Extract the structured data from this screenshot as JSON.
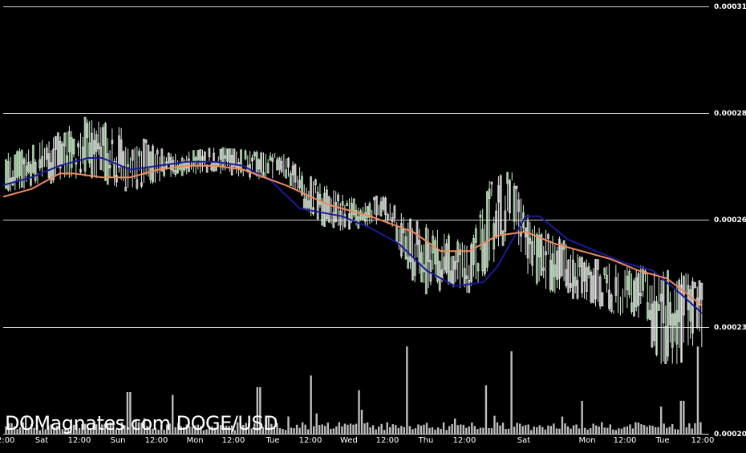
{
  "watermark": "DOMagnates.com DOGE/USD",
  "colors": {
    "background": "#000000",
    "grid": "#cfcfcf",
    "candle": "#e8e8e8",
    "candle_alt": "#c8f0c8",
    "ma_fast": "#1a1a9a",
    "ma_slow": "#f08a60",
    "volume": "#bdbdbd"
  },
  "chart_data": {
    "type": "line",
    "title": "",
    "series_style": "candlestick with volume bars and two moving averages",
    "y_axis": {
      "position": "right",
      "tick_labels": [
        "0.00031",
        "0.00028",
        "0.00026",
        "0.00023",
        "0.00020"
      ],
      "ylim": [
        0.0002,
        0.00031
      ],
      "grid": true
    },
    "x_axis": {
      "tick_labels": [
        "12:00",
        "Sat",
        "12:00",
        "Sun",
        "12:00",
        "Mon",
        "12:00",
        "Tue",
        "12:00",
        "Wed",
        "12:00",
        "Thu",
        "12:00",
        "Sat",
        "Mon",
        "12:00",
        "Tue",
        "12:00"
      ]
    },
    "price_envelope": {
      "x": [
        0,
        3,
        6,
        9,
        12,
        15,
        18,
        20,
        22,
        24,
        25.5,
        27,
        28.5,
        30,
        31.5,
        33,
        34.5,
        36,
        37.5,
        39,
        41,
        43,
        45,
        46.5,
        48,
        49
      ],
      "high": [
        0.000272,
        0.000276,
        0.000282,
        0.000278,
        0.000272,
        0.000274,
        0.000273,
        0.000272,
        0.000266,
        0.000262,
        0.00026,
        0.000262,
        0.000256,
        0.000254,
        0.000252,
        0.000248,
        0.000266,
        0.000268,
        0.000254,
        0.000252,
        0.000246,
        0.000244,
        0.000244,
        0.000242,
        0.000243,
        0.00024
      ],
      "low": [
        0.000262,
        0.000264,
        0.000266,
        0.000262,
        0.000266,
        0.000267,
        0.000265,
        0.000266,
        0.000254,
        0.000252,
        0.000253,
        0.000254,
        0.000242,
        0.000234,
        0.000238,
        0.000236,
        0.000242,
        0.000252,
        0.000238,
        0.000236,
        0.000234,
        0.000231,
        0.000229,
        0.000218,
        0.000218,
        0.000222
      ]
    },
    "series": [
      {
        "style": "moving-average",
        "color": "#1a1a9a",
        "x": [
          0,
          2,
          4,
          6,
          7,
          9,
          11,
          13,
          15,
          17,
          19,
          21,
          24,
          26,
          28,
          30,
          32,
          34,
          35,
          37,
          38,
          40,
          42,
          44,
          46,
          48,
          49.5
        ],
        "values": [
          0.000264,
          0.000266,
          0.000269,
          0.000271,
          0.000271,
          0.000268,
          0.000269,
          0.00027,
          0.00027,
          0.000269,
          0.000265,
          0.000258,
          0.000256,
          0.000253,
          0.000249,
          0.000242,
          0.000238,
          0.000239,
          0.000243,
          0.000256,
          0.000256,
          0.00025,
          0.000247,
          0.000244,
          0.000242,
          0.000236,
          0.000231
        ]
      },
      {
        "style": "moving-average",
        "color": "#f08a60",
        "x": [
          0,
          2,
          4,
          5,
          7,
          9,
          11,
          13,
          15,
          17,
          20,
          23,
          26,
          29,
          31,
          33,
          35,
          37,
          39,
          41,
          43,
          45,
          47,
          49.5
        ],
        "values": [
          0.000261,
          0.000263,
          0.000267,
          0.000267,
          0.000266,
          0.000266,
          0.000268,
          0.000269,
          0.000269,
          0.000268,
          0.000264,
          0.000259,
          0.000256,
          0.000252,
          0.000247,
          0.000247,
          0.000251,
          0.000252,
          0.000249,
          0.000247,
          0.000245,
          0.000242,
          0.00024,
          0.000233
        ]
      }
    ],
    "volume": {
      "x": [
        28.6,
        36.0,
        49.2,
        8.9,
        18.1,
        25.2,
        34.2,
        48.1,
        12.0,
        21.8,
        41.0,
        46.6
      ],
      "values": [
        0.9,
        0.85,
        0.9,
        0.43,
        0.48,
        0.45,
        0.5,
        0.34,
        0.4,
        0.6,
        0.3,
        0.28
      ],
      "baseline": 0.12
    }
  }
}
